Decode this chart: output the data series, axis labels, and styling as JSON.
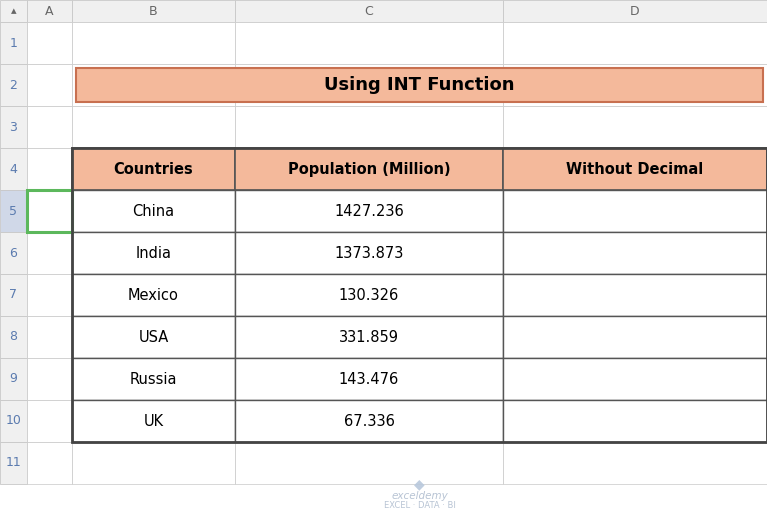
{
  "title": "Using INT Function",
  "title_bg_color": "#F4B99B",
  "title_border_color": "#C87050",
  "header_bg_color": "#F4B99B",
  "table_border_color": "#555555",
  "cell_bg_color": "#FFFFFF",
  "headers": [
    "Countries",
    "Population (Million)",
    "Without Decimal"
  ],
  "rows": [
    [
      "China",
      "1427.236",
      ""
    ],
    [
      "India",
      "1373.873",
      ""
    ],
    [
      "Mexico",
      "130.326",
      ""
    ],
    [
      "USA",
      "331.859",
      ""
    ],
    [
      "Russia",
      "143.476",
      ""
    ],
    [
      "UK",
      "67.336",
      ""
    ]
  ],
  "col_header_labels": [
    "▴",
    "A",
    "B",
    "C",
    "D"
  ],
  "row_labels": [
    "1",
    "2",
    "3",
    "4",
    "5",
    "6",
    "7",
    "8",
    "9",
    "10",
    "11"
  ],
  "col_header_bg": "#F0F0F0",
  "row_num_bg": "#F0F0F0",
  "row5_num_bg": "#D0D8E8",
  "row5_num_color": "#5B7BAF",
  "row_num_color": "#5B7BAF",
  "grid_color": "#C8C8C8",
  "bg_color": "#FFFFFF",
  "green_border": "#5CB85C",
  "watermark_text": "exceldemy",
  "watermark_sub": "EXCEL · DATA · BI",
  "watermark_color": "#B8C4D4"
}
